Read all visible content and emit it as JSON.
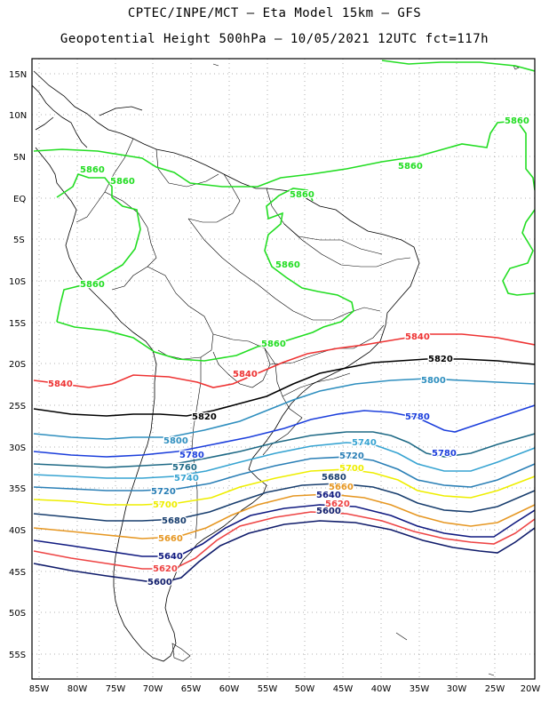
{
  "header": {
    "line1": "CPTEC/INPE/MCT –  Eta Model 15km – GFS",
    "line2": "Geopotential Height 500hPa – 10/05/2021 12UTC fct=117h"
  },
  "axes": {
    "lat_ticks": [
      "15N",
      "10N",
      "5N",
      "EQ",
      "5S",
      "10S",
      "15S",
      "20S",
      "25S",
      "30S",
      "35S",
      "40S",
      "45S",
      "50S",
      "55S"
    ],
    "lon_ticks": [
      "85W",
      "80W",
      "75W",
      "70W",
      "65W",
      "60W",
      "55W",
      "50W",
      "45W",
      "40W",
      "35W",
      "30W",
      "25W",
      "20W"
    ]
  },
  "colors": {
    "c5860": "#22dd22",
    "c5840": "#ee3333",
    "c5820": "#000000",
    "c5800": "#2f8fbf",
    "c5780": "#1c3fdc",
    "c5760": "#1f6a86",
    "c5740": "#37a4d2",
    "c5720": "#2a7fb6",
    "c5700": "#eeee00",
    "c5680": "#183e6e",
    "c5660": "#e69722",
    "c5640": "#101a80",
    "c5620": "#ee4444",
    "c5600": "#0f1b6a"
  },
  "contour_labels": [
    {
      "id": "l5860a",
      "text": "5860"
    },
    {
      "id": "l5860b",
      "text": "5860"
    },
    {
      "id": "l5860c",
      "text": "5860"
    },
    {
      "id": "l5860d",
      "text": "5860"
    },
    {
      "id": "l5860e",
      "text": "5860"
    },
    {
      "id": "l5860f",
      "text": "5860"
    },
    {
      "id": "l5860g",
      "text": "5860"
    },
    {
      "id": "l5860h",
      "text": "5860"
    },
    {
      "id": "l5840a",
      "text": "5840"
    },
    {
      "id": "l5840b",
      "text": "5840"
    },
    {
      "id": "l5840c",
      "text": "5840"
    },
    {
      "id": "l5820a",
      "text": "5820"
    },
    {
      "id": "l5820b",
      "text": "5820"
    },
    {
      "id": "l5800a",
      "text": "5800"
    },
    {
      "id": "l5800b",
      "text": "5800"
    },
    {
      "id": "l5780a",
      "text": "5780"
    },
    {
      "id": "l5780b",
      "text": "5780"
    },
    {
      "id": "l5780c",
      "text": "5780"
    },
    {
      "id": "l5760a",
      "text": "5760"
    },
    {
      "id": "l5740a",
      "text": "5740"
    },
    {
      "id": "l5740b",
      "text": "5740"
    },
    {
      "id": "l5720a",
      "text": "5720"
    },
    {
      "id": "l5720b",
      "text": "5720"
    },
    {
      "id": "l5700a",
      "text": "5700"
    },
    {
      "id": "l5700b",
      "text": "5700"
    },
    {
      "id": "l5680a",
      "text": "5680"
    },
    {
      "id": "l5680b",
      "text": "5680"
    },
    {
      "id": "l5660a",
      "text": "5660"
    },
    {
      "id": "l5660b",
      "text": "5660"
    },
    {
      "id": "l5640a",
      "text": "5640"
    },
    {
      "id": "l5640b",
      "text": "5640"
    },
    {
      "id": "l5620a",
      "text": "5620"
    },
    {
      "id": "l5620b",
      "text": "5620"
    },
    {
      "id": "l5600a",
      "text": "5600"
    },
    {
      "id": "l5600b",
      "text": "5600"
    }
  ]
}
